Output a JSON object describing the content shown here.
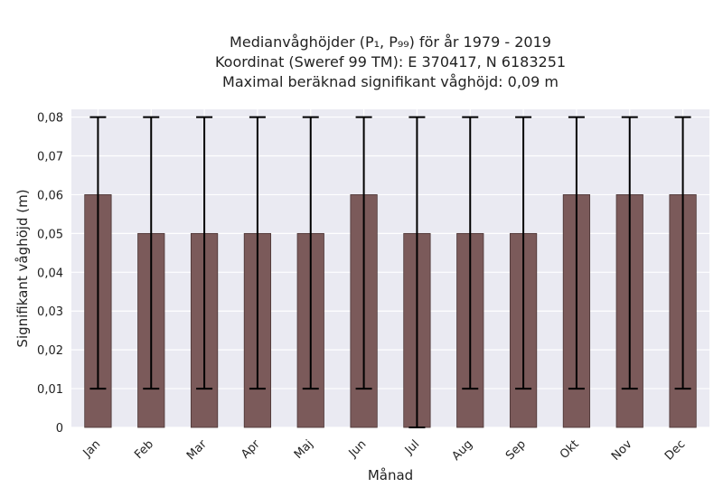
{
  "chart_data": {
    "type": "bar",
    "title_lines": [
      "Medianvåghöjder (P₁, P₉₉) för år 1979 - 2019",
      "Koordinat (Sweref 99 TM): E 370417, N 6183251",
      "Maximal beräknad signifikant våghöjd: 0,09 m"
    ],
    "xlabel": "Månad",
    "ylabel": "Signifikant våghöjd (m)",
    "categories": [
      "Jan",
      "Feb",
      "Mar",
      "Apr",
      "Maj",
      "Jun",
      "Jul",
      "Aug",
      "Sep",
      "Okt",
      "Nov",
      "Dec"
    ],
    "series": [
      {
        "values": [
          0.06,
          0.05,
          0.05,
          0.05,
          0.05,
          0.06,
          0.05,
          0.05,
          0.05,
          0.06,
          0.06,
          0.06
        ],
        "lower": [
          0.01,
          0.01,
          0.01,
          0.01,
          0.01,
          0.01,
          0.0,
          0.01,
          0.01,
          0.01,
          0.01,
          0.01
        ],
        "upper": [
          0.08,
          0.08,
          0.08,
          0.08,
          0.08,
          0.08,
          0.08,
          0.08,
          0.08,
          0.08,
          0.08,
          0.08
        ]
      }
    ],
    "ylim": [
      0,
      0.082
    ],
    "yticks": [
      0,
      0.01,
      0.02,
      0.03,
      0.04,
      0.05,
      0.06,
      0.07,
      0.08
    ],
    "ytick_labels": [
      "0",
      "0,01",
      "0,02",
      "0,03",
      "0,04",
      "0,05",
      "0,06",
      "0,07",
      "0,08"
    ],
    "grid": true,
    "colors": {
      "bar": "#7b5a5a",
      "bar_edge": "#4a3434",
      "errorbar": "#000000",
      "plot_background": "#eaeaf2",
      "grid": "#ffffff"
    }
  }
}
